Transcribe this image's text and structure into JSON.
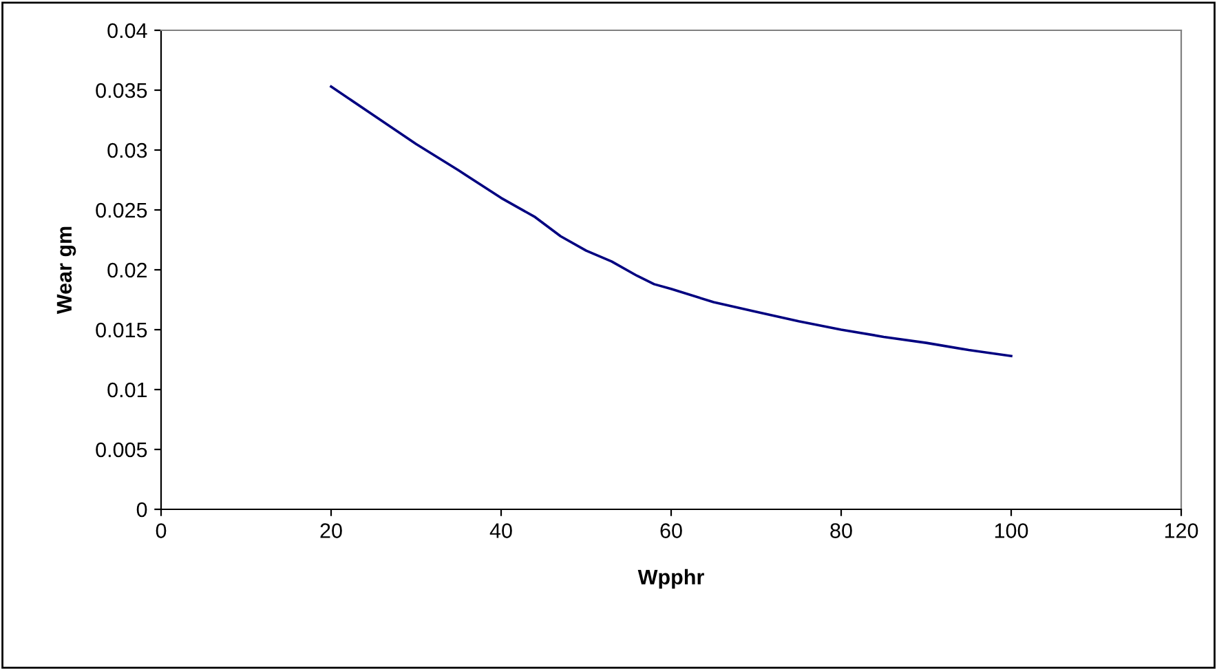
{
  "chart_data": {
    "type": "line",
    "xlabel": "Wpphr",
    "ylabel": "Wear gm",
    "x": [
      20,
      25,
      30,
      35,
      40,
      44,
      47,
      50,
      53,
      56,
      58,
      60,
      65,
      70,
      75,
      80,
      85,
      90,
      95,
      100
    ],
    "series": [
      {
        "color": "#000080",
        "values": [
          0.0353,
          0.0329,
          0.0305,
          0.0283,
          0.026,
          0.0244,
          0.0228,
          0.0216,
          0.0207,
          0.0195,
          0.0188,
          0.0184,
          0.0173,
          0.0165,
          0.0157,
          0.015,
          0.0144,
          0.0139,
          0.0133,
          0.0128
        ]
      }
    ],
    "xlim": [
      0,
      120
    ],
    "xticks": [
      0,
      20,
      40,
      60,
      80,
      100,
      120
    ],
    "ylim": [
      0,
      0.04
    ],
    "yticks": [
      0,
      0.005,
      0.01,
      0.015,
      0.02,
      0.025,
      0.03,
      0.035,
      0.04
    ],
    "grid": false,
    "legend": false,
    "marker": "none",
    "line_style": "solid"
  }
}
